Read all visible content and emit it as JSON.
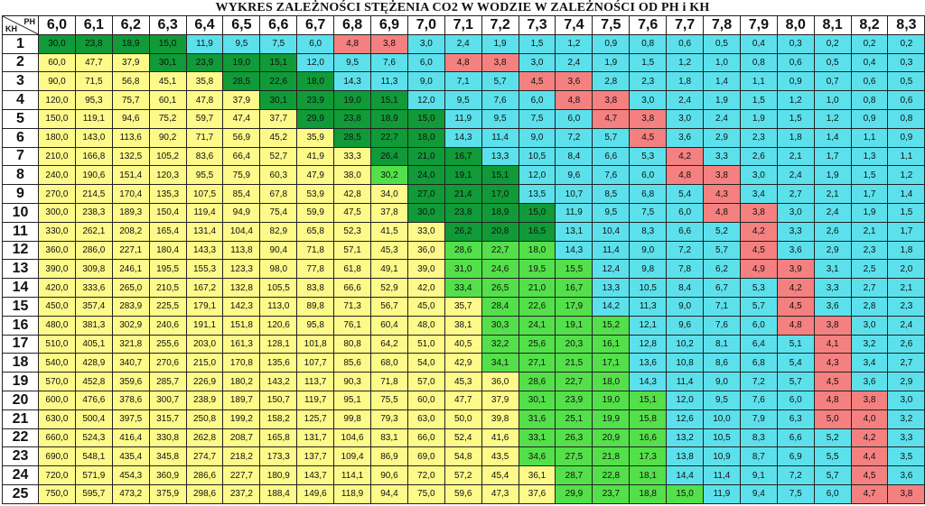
{
  "chart_data": {
    "type": "table",
    "title": "WYKRES ZALEŻNOŚCI STĘŻENIA CO2 W WODZIE W ZALEŻNOŚCI OD PH i KH",
    "corner": {
      "col_label": "PH",
      "row_label": "KH"
    },
    "columns": [
      "6,0",
      "6,1",
      "6,2",
      "6,3",
      "6,4",
      "6,5",
      "6,6",
      "6,7",
      "6,8",
      "6,9",
      "7,0",
      "7,1",
      "7,2",
      "7,3",
      "7,4",
      "7,5",
      "7,6",
      "7,7",
      "7,8",
      "7,9",
      "8,0",
      "8,1",
      "8,2",
      "8,3"
    ],
    "rows": [
      {
        "kh": "1",
        "values": [
          "30,0",
          "23,8",
          "18,9",
          "15,0",
          "11,9",
          "9,5",
          "7,5",
          "6,0",
          "4,8",
          "3,8",
          "3,0",
          "2,4",
          "1,9",
          "1,5",
          "1,2",
          "0,9",
          "0,8",
          "0,6",
          "0,5",
          "0,4",
          "0,3",
          "0,2",
          "0,2",
          "0,2"
        ]
      },
      {
        "kh": "2",
        "values": [
          "60,0",
          "47,7",
          "37,9",
          "30,1",
          "23,9",
          "19,0",
          "15,1",
          "12,0",
          "9,5",
          "7,6",
          "6,0",
          "4,8",
          "3,8",
          "3,0",
          "2,4",
          "1,9",
          "1,5",
          "1,2",
          "1,0",
          "0,8",
          "0,6",
          "0,5",
          "0,4",
          "0,3"
        ]
      },
      {
        "kh": "3",
        "values": [
          "90,0",
          "71,5",
          "56,8",
          "45,1",
          "35,8",
          "28,5",
          "22,6",
          "18,0",
          "14,3",
          "11,3",
          "9,0",
          "7,1",
          "5,7",
          "4,5",
          "3,6",
          "2,8",
          "2,3",
          "1,8",
          "1,4",
          "1,1",
          "0,9",
          "0,7",
          "0,6",
          "0,5"
        ]
      },
      {
        "kh": "4",
        "values": [
          "120,0",
          "95,3",
          "75,7",
          "60,1",
          "47,8",
          "37,9",
          "30,1",
          "23,9",
          "19,0",
          "15,1",
          "12,0",
          "9,5",
          "7,6",
          "6,0",
          "4,8",
          "3,8",
          "3,0",
          "2,4",
          "1,9",
          "1,5",
          "1,2",
          "1,0",
          "0,8",
          "0,6"
        ]
      },
      {
        "kh": "5",
        "values": [
          "150,0",
          "119,1",
          "94,6",
          "75,2",
          "59,7",
          "47,4",
          "37,7",
          "29,9",
          "23,8",
          "18,9",
          "15,0",
          "11,9",
          "9,5",
          "7,5",
          "6,0",
          "4,7",
          "3,8",
          "3,0",
          "2,4",
          "1,9",
          "1,5",
          "1,2",
          "0,9",
          "0,8"
        ]
      },
      {
        "kh": "6",
        "values": [
          "180,0",
          "143,0",
          "113,6",
          "90,2",
          "71,7",
          "56,9",
          "45,2",
          "35,9",
          "28,5",
          "22,7",
          "18,0",
          "14,3",
          "11,4",
          "9,0",
          "7,2",
          "5,7",
          "4,5",
          "3,6",
          "2,9",
          "2,3",
          "1,8",
          "1,4",
          "1,1",
          "0,9"
        ]
      },
      {
        "kh": "7",
        "values": [
          "210,0",
          "166,8",
          "132,5",
          "105,2",
          "83,6",
          "66,4",
          "52,7",
          "41,9",
          "33,3",
          "26,4",
          "21,0",
          "16,7",
          "13,3",
          "10,5",
          "8,4",
          "6,6",
          "5,3",
          "4,2",
          "3,3",
          "2,6",
          "2,1",
          "1,7",
          "1,3",
          "1,1"
        ]
      },
      {
        "kh": "8",
        "values": [
          "240,0",
          "190,6",
          "151,4",
          "120,3",
          "95,5",
          "75,9",
          "60,3",
          "47,9",
          "38,0",
          "30,2",
          "24,0",
          "19,1",
          "15,1",
          "12,0",
          "9,6",
          "7,6",
          "6,0",
          "4,8",
          "3,8",
          "3,0",
          "2,4",
          "1,9",
          "1,5",
          "1,2"
        ]
      },
      {
        "kh": "9",
        "values": [
          "270,0",
          "214,5",
          "170,4",
          "135,3",
          "107,5",
          "85,4",
          "67,8",
          "53,9",
          "42,8",
          "34,0",
          "27,0",
          "21,4",
          "17,0",
          "13,5",
          "10,7",
          "8,5",
          "6,8",
          "5,4",
          "4,3",
          "3,4",
          "2,7",
          "2,1",
          "1,7",
          "1,4"
        ]
      },
      {
        "kh": "10",
        "values": [
          "300,0",
          "238,3",
          "189,3",
          "150,4",
          "119,4",
          "94,9",
          "75,4",
          "59,9",
          "47,5",
          "37,8",
          "30,0",
          "23,8",
          "18,9",
          "15,0",
          "11,9",
          "9,5",
          "7,5",
          "6,0",
          "4,8",
          "3,8",
          "3,0",
          "2,4",
          "1,9",
          "1,5"
        ]
      },
      {
        "kh": "11",
        "values": [
          "330,0",
          "262,1",
          "208,2",
          "165,4",
          "131,4",
          "104,4",
          "82,9",
          "65,8",
          "52,3",
          "41,5",
          "33,0",
          "26,2",
          "20,8",
          "16,5",
          "13,1",
          "10,4",
          "8,3",
          "6,6",
          "5,2",
          "4,2",
          "3,3",
          "2,6",
          "2,1",
          "1,7"
        ]
      },
      {
        "kh": "12",
        "values": [
          "360,0",
          "286,0",
          "227,1",
          "180,4",
          "143,3",
          "113,8",
          "90,4",
          "71,8",
          "57,1",
          "45,3",
          "36,0",
          "28,6",
          "22,7",
          "18,0",
          "14,3",
          "11,4",
          "9,0",
          "7,2",
          "5,7",
          "4,5",
          "3,6",
          "2,9",
          "2,3",
          "1,8"
        ]
      },
      {
        "kh": "13",
        "values": [
          "390,0",
          "309,8",
          "246,1",
          "195,5",
          "155,3",
          "123,3",
          "98,0",
          "77,8",
          "61,8",
          "49,1",
          "39,0",
          "31,0",
          "24,6",
          "19,5",
          "15,5",
          "12,4",
          "9,8",
          "7,8",
          "6,2",
          "4,9",
          "3,9",
          "3,1",
          "2,5",
          "2,0"
        ]
      },
      {
        "kh": "14",
        "values": [
          "420,0",
          "333,6",
          "265,0",
          "210,5",
          "167,2",
          "132,8",
          "105,5",
          "83,8",
          "66,6",
          "52,9",
          "42,0",
          "33,4",
          "26,5",
          "21,0",
          "16,7",
          "13,3",
          "10,5",
          "8,4",
          "6,7",
          "5,3",
          "4,2",
          "3,3",
          "2,7",
          "2,1"
        ]
      },
      {
        "kh": "15",
        "values": [
          "450,0",
          "357,4",
          "283,9",
          "225,5",
          "179,1",
          "142,3",
          "113,0",
          "89,8",
          "71,3",
          "56,7",
          "45,0",
          "35,7",
          "28,4",
          "22,6",
          "17,9",
          "14,2",
          "11,3",
          "9,0",
          "7,1",
          "5,7",
          "4,5",
          "3,6",
          "2,8",
          "2,3"
        ]
      },
      {
        "kh": "16",
        "values": [
          "480,0",
          "381,3",
          "302,9",
          "240,6",
          "191,1",
          "151,8",
          "120,6",
          "95,8",
          "76,1",
          "60,4",
          "48,0",
          "38,1",
          "30,3",
          "24,1",
          "19,1",
          "15,2",
          "12,1",
          "9,6",
          "7,6",
          "6,0",
          "4,8",
          "3,8",
          "3,0",
          "2,4"
        ]
      },
      {
        "kh": "17",
        "values": [
          "510,0",
          "405,1",
          "321,8",
          "255,6",
          "203,0",
          "161,3",
          "128,1",
          "101,8",
          "80,8",
          "64,2",
          "51,0",
          "40,5",
          "32,2",
          "25,6",
          "20,3",
          "16,1",
          "12,8",
          "10,2",
          "8,1",
          "6,4",
          "5,1",
          "4,1",
          "3,2",
          "2,6"
        ]
      },
      {
        "kh": "18",
        "values": [
          "540,0",
          "428,9",
          "340,7",
          "270,6",
          "215,0",
          "170,8",
          "135,6",
          "107,7",
          "85,6",
          "68,0",
          "54,0",
          "42,9",
          "34,1",
          "27,1",
          "21,5",
          "17,1",
          "13,6",
          "10,8",
          "8,6",
          "6,8",
          "5,4",
          "4,3",
          "3,4",
          "2,7"
        ]
      },
      {
        "kh": "19",
        "values": [
          "570,0",
          "452,8",
          "359,6",
          "285,7",
          "226,9",
          "180,2",
          "143,2",
          "113,7",
          "90,3",
          "71,8",
          "57,0",
          "45,3",
          "36,0",
          "28,6",
          "22,7",
          "18,0",
          "14,3",
          "11,4",
          "9,0",
          "7,2",
          "5,7",
          "4,5",
          "3,6",
          "2,9"
        ]
      },
      {
        "kh": "20",
        "values": [
          "600,0",
          "476,6",
          "378,6",
          "300,7",
          "238,9",
          "189,7",
          "150,7",
          "119,7",
          "95,1",
          "75,5",
          "60,0",
          "47,7",
          "37,9",
          "30,1",
          "23,9",
          "19,0",
          "15,1",
          "12,0",
          "9,5",
          "7,6",
          "6,0",
          "4,8",
          "3,8",
          "3,0"
        ]
      },
      {
        "kh": "21",
        "values": [
          "630,0",
          "500,4",
          "397,5",
          "315,7",
          "250,8",
          "199,2",
          "158,2",
          "125,7",
          "99,8",
          "79,3",
          "63,0",
          "50,0",
          "39,8",
          "31,6",
          "25,1",
          "19,9",
          "15,8",
          "12,6",
          "10,0",
          "7,9",
          "6,3",
          "5,0",
          "4,0",
          "3,2"
        ]
      },
      {
        "kh": "22",
        "values": [
          "660,0",
          "524,3",
          "416,4",
          "330,8",
          "262,8",
          "208,7",
          "165,8",
          "131,7",
          "104,6",
          "83,1",
          "66,0",
          "52,4",
          "41,6",
          "33,1",
          "26,3",
          "20,9",
          "16,6",
          "13,2",
          "10,5",
          "8,3",
          "6,6",
          "5,2",
          "4,2",
          "3,3"
        ]
      },
      {
        "kh": "23",
        "values": [
          "690,0",
          "548,1",
          "435,4",
          "345,8",
          "274,7",
          "218,2",
          "173,3",
          "137,7",
          "109,4",
          "86,9",
          "69,0",
          "54,8",
          "43,5",
          "34,6",
          "27,5",
          "21,8",
          "17,3",
          "13,8",
          "10,9",
          "8,7",
          "6,9",
          "5,5",
          "4,4",
          "3,5"
        ]
      },
      {
        "kh": "24",
        "values": [
          "720,0",
          "571,9",
          "454,3",
          "360,9",
          "286,6",
          "227,7",
          "180,9",
          "143,7",
          "114,1",
          "90,6",
          "72,0",
          "57,2",
          "45,4",
          "36,1",
          "28,7",
          "22,8",
          "18,1",
          "14,4",
          "11,4",
          "9,1",
          "7,2",
          "5,7",
          "4,5",
          "3,6"
        ]
      },
      {
        "kh": "25",
        "values": [
          "750,0",
          "595,7",
          "473,2",
          "375,9",
          "298,6",
          "237,2",
          "188,4",
          "149,6",
          "118,9",
          "94,4",
          "75,0",
          "59,6",
          "47,3",
          "37,6",
          "29,9",
          "23,7",
          "18,8",
          "15,0",
          "11,9",
          "9,4",
          "7,5",
          "6,0",
          "4,7",
          "3,8"
        ]
      }
    ],
    "color_zones": {
      "yellow": "#fdfa8a",
      "dark_green": "#109a38",
      "light_green": "#54e04a",
      "cyan": "#5ce1ec",
      "red": "#f58080"
    }
  }
}
